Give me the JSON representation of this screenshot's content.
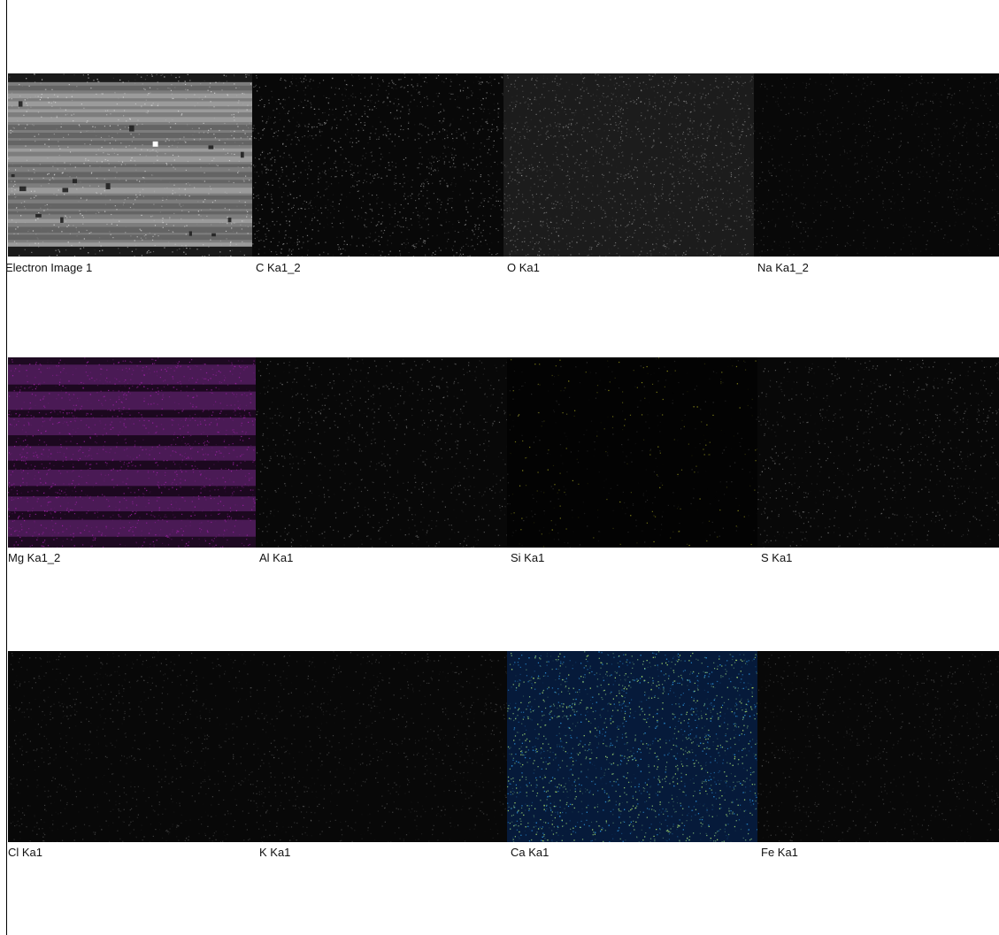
{
  "panels": [
    {
      "label": "Electron Image 1",
      "tone": "electron",
      "color": "#bdbdbd"
    },
    {
      "label": "C Ka1_2",
      "tone": "dim",
      "color": "#d0d0d0"
    },
    {
      "label": "O Ka1",
      "tone": "mid",
      "color": "#bcbcbc"
    },
    {
      "label": "Na Ka1_2",
      "tone": "faint",
      "color": "#8a8a8a"
    },
    {
      "label": "Mg Ka1_2",
      "tone": "mg",
      "color": "#a020a8"
    },
    {
      "label": "Al Ka1",
      "tone": "faint",
      "color": "#c8c8c8"
    },
    {
      "label": "Si Ka1",
      "tone": "si",
      "color": "#b0b020"
    },
    {
      "label": "S Ka1",
      "tone": "faint",
      "color": "#c8c8c8"
    },
    {
      "label": "Cl Ka1",
      "tone": "faint",
      "color": "#8a8a8a"
    },
    {
      "label": "K Ka1",
      "tone": "faint",
      "color": "#8a8a8a"
    },
    {
      "label": "Ca Ka1",
      "tone": "ca",
      "color": "#2a8ad0"
    },
    {
      "label": "Fe Ka1",
      "tone": "faint",
      "color": "#8a8a8a"
    }
  ]
}
